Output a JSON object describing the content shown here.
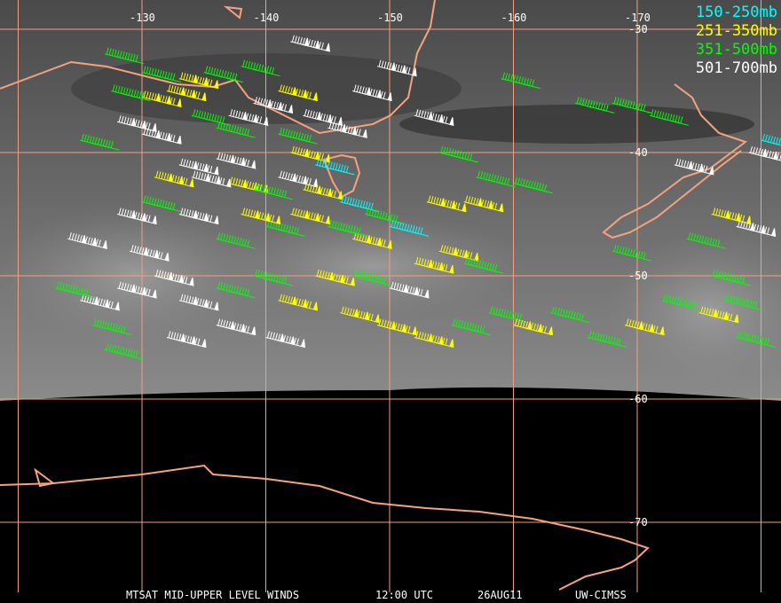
{
  "map": {
    "title": "MTSAT MID-UPPER LEVEL WINDS",
    "time": "12:00 UTC",
    "date": "26AUG11",
    "credit": "UW-CIMSS",
    "longitude_labels": [
      "-130",
      "-140",
      "-150",
      "-160",
      "-170"
    ],
    "latitude_labels": [
      "-30",
      "-40",
      "-50",
      "-60",
      "-70"
    ],
    "longitudes": [
      -130,
      -140,
      -150,
      -160,
      -170
    ],
    "latitudes": [
      -30,
      -40,
      -50,
      -60,
      -70
    ],
    "colors": {
      "grid": "#f2a07e",
      "coast": "#f5a27f",
      "cyan": "#00ffff",
      "yellow": "#ffff00",
      "green": "#00ff00",
      "white": "#ffffff"
    }
  },
  "legend": [
    {
      "label": "150-250mb",
      "color": "#00ffff"
    },
    {
      "label": "251-350mb",
      "color": "#ffff00"
    },
    {
      "label": "351-500mb",
      "color": "#00ff00"
    },
    {
      "label": "501-700mb",
      "color": "#ffffff"
    }
  ],
  "barbs": [
    [
      -127,
      -32,
      "g"
    ],
    [
      -130,
      -33.5,
      "g"
    ],
    [
      -133,
      -34,
      "y"
    ],
    [
      -135,
      -33.5,
      "g"
    ],
    [
      -127.5,
      -35,
      "g"
    ],
    [
      -130,
      -35.5,
      "y"
    ],
    [
      -132,
      -35,
      "y"
    ],
    [
      -137,
      -37,
      "w"
    ],
    [
      -128,
      -37.5,
      "w"
    ],
    [
      -130,
      -38.5,
      "w"
    ],
    [
      -134,
      -37,
      "g"
    ],
    [
      -136,
      -38,
      "g"
    ],
    [
      -139,
      -36,
      "w"
    ],
    [
      -141,
      -35,
      "y"
    ],
    [
      -143,
      -37,
      "w"
    ],
    [
      -145,
      -38,
      "w"
    ],
    [
      -141,
      -38.5,
      "g"
    ],
    [
      -142,
      -40,
      "y"
    ],
    [
      -144,
      -41,
      "c"
    ],
    [
      -136,
      -40.5,
      "w"
    ],
    [
      -133,
      -41,
      "w"
    ],
    [
      -131,
      -42,
      "y"
    ],
    [
      -134,
      -42,
      "w"
    ],
    [
      -137,
      -42.5,
      "y"
    ],
    [
      -139,
      -43,
      "g"
    ],
    [
      -141,
      -42,
      "w"
    ],
    [
      -143,
      -43,
      "y"
    ],
    [
      -146,
      -44,
      "c"
    ],
    [
      -148,
      -45,
      "g"
    ],
    [
      -150,
      -46,
      "c"
    ],
    [
      -147,
      -47,
      "y"
    ],
    [
      -145,
      -46,
      "g"
    ],
    [
      -142,
      -45,
      "y"
    ],
    [
      -140,
      -46,
      "g"
    ],
    [
      -138,
      -45,
      "y"
    ],
    [
      -136,
      -47,
      "g"
    ],
    [
      -133,
      -45,
      "w"
    ],
    [
      -130,
      -44,
      "g"
    ],
    [
      -128,
      -45,
      "w"
    ],
    [
      -129,
      -48,
      "w"
    ],
    [
      -131,
      -50,
      "w"
    ],
    [
      -128,
      -51,
      "w"
    ],
    [
      -125,
      -52,
      "w"
    ],
    [
      -133,
      -52,
      "w"
    ],
    [
      -136,
      -51,
      "g"
    ],
    [
      -139,
      -50,
      "g"
    ],
    [
      -141,
      -52,
      "y"
    ],
    [
      -144,
      -50,
      "y"
    ],
    [
      -147,
      -50,
      "g"
    ],
    [
      -150,
      -51,
      "w"
    ],
    [
      -152,
      -49,
      "y"
    ],
    [
      -154,
      -48,
      "y"
    ],
    [
      -156,
      -49,
      "g"
    ],
    [
      -146,
      -53,
      "y"
    ],
    [
      -149,
      -54,
      "y"
    ],
    [
      -152,
      -55,
      "y"
    ],
    [
      -155,
      -54,
      "g"
    ],
    [
      -158,
      -53,
      "g"
    ],
    [
      -160,
      -54,
      "y"
    ],
    [
      -163,
      -53,
      "g"
    ],
    [
      -166,
      -55,
      "g"
    ],
    [
      -169,
      -54,
      "y"
    ],
    [
      -172,
      -52,
      "g"
    ],
    [
      -175,
      -53,
      "y"
    ],
    [
      -177,
      -52,
      "g"
    ],
    [
      -178,
      -55,
      "g"
    ],
    [
      -140,
      -55,
      "w"
    ],
    [
      -132,
      -55,
      "w"
    ],
    [
      -126,
      -54,
      "g"
    ],
    [
      -127,
      -56,
      "g"
    ],
    [
      -136,
      -54,
      "w"
    ],
    [
      -124,
      -47,
      "w"
    ],
    [
      -123,
      -51,
      "g"
    ],
    [
      -125,
      -39,
      "g"
    ],
    [
      -152,
      -37,
      "w"
    ],
    [
      -154,
      -40,
      "g"
    ],
    [
      -157,
      -42,
      "g"
    ],
    [
      -160,
      -42.5,
      "g"
    ],
    [
      -165,
      -36,
      "g"
    ],
    [
      -168,
      -36,
      "g"
    ],
    [
      -171,
      -37,
      "g"
    ],
    [
      -173,
      -41,
      "w"
    ],
    [
      -176,
      -45,
      "y"
    ],
    [
      -178,
      -46,
      "w"
    ],
    [
      -174,
      -47,
      "g"
    ],
    [
      -168,
      -48,
      "g"
    ],
    [
      -179,
      -40,
      "w"
    ],
    [
      -180,
      -39,
      "c"
    ],
    [
      -176,
      -50,
      "g"
    ],
    [
      -156,
      -44,
      "y"
    ],
    [
      -153,
      -44,
      "y"
    ],
    [
      -159,
      -34,
      "g"
    ],
    [
      -149,
      -33,
      "w"
    ],
    [
      -147,
      -35,
      "w"
    ],
    [
      -138,
      -33,
      "g"
    ],
    [
      -142,
      -31,
      "w"
    ]
  ]
}
